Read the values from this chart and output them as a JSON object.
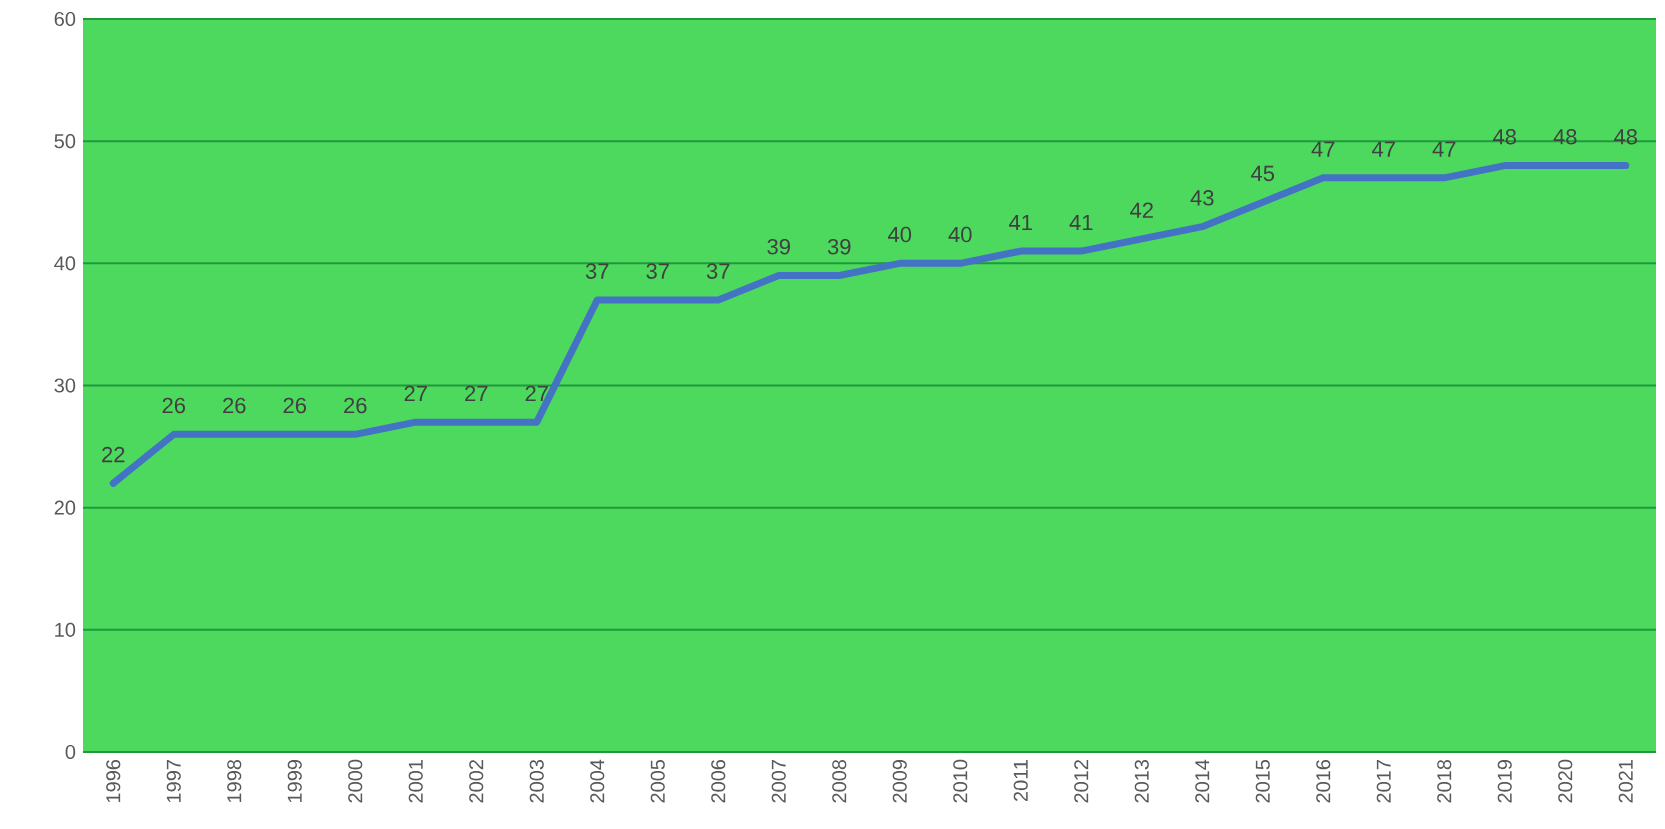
{
  "chart_data": {
    "type": "line",
    "categories": [
      "1996",
      "1997",
      "1998",
      "1999",
      "2000",
      "2001",
      "2002",
      "2003",
      "2004",
      "2005",
      "2006",
      "2007",
      "2008",
      "2009",
      "2010",
      "2011",
      "2012",
      "2013",
      "2014",
      "2015",
      "2016",
      "2017",
      "2018",
      "2019",
      "2020",
      "2021"
    ],
    "values": [
      22,
      26,
      26,
      26,
      26,
      27,
      27,
      27,
      37,
      37,
      37,
      39,
      39,
      40,
      40,
      41,
      41,
      42,
      43,
      45,
      47,
      47,
      47,
      48,
      48,
      48
    ],
    "color": "#4472c4",
    "ylim": [
      0,
      60
    ],
    "yticks": [
      0,
      10,
      20,
      30,
      40,
      50,
      60
    ],
    "grid": "y",
    "data_labels": true,
    "marker": "none"
  }
}
